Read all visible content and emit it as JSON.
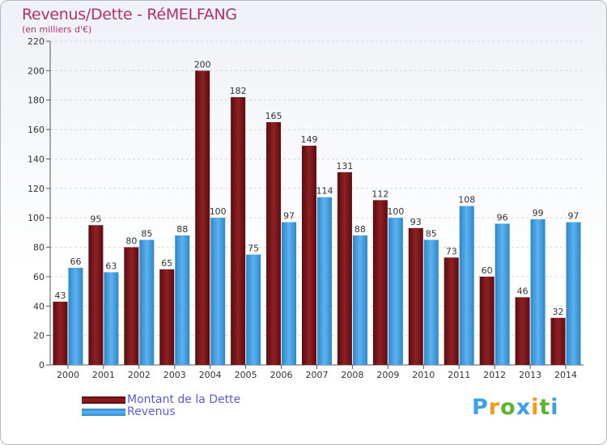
{
  "header": {
    "title": "Revenus/Dette - RéMELFANG",
    "subtitle": "(en milliers d'€)"
  },
  "colors": {
    "dette": "#7a1418",
    "revenus": "#4aa3e2",
    "title": "#b0306a"
  },
  "logo": {
    "text": "Proxiti",
    "letters": [
      "P",
      "r",
      "o",
      "x",
      "i",
      "t",
      "i"
    ],
    "colors": [
      "#3aa0e8",
      "#f29a1b",
      "#5cb531",
      "#3aa0e8",
      "#f29a1b",
      "#5cb531",
      "#3aa0e8"
    ]
  },
  "chart_data": {
    "type": "bar",
    "title": "Revenus/Dette - RéMELFANG",
    "ylabel": "(en milliers d'€)",
    "xlabel": "",
    "categories": [
      "2000",
      "2001",
      "2002",
      "2003",
      "2004",
      "2005",
      "2006",
      "2007",
      "2008",
      "2009",
      "2010",
      "2011",
      "2012",
      "2013",
      "2014"
    ],
    "series": [
      {
        "name": "Montant de la Dette",
        "values": [
          43,
          95,
          80,
          65,
          200,
          182,
          165,
          149,
          131,
          112,
          93,
          73,
          60,
          46,
          32
        ]
      },
      {
        "name": "Revenus",
        "values": [
          66,
          63,
          85,
          88,
          100,
          75,
          97,
          114,
          88,
          100,
          85,
          108,
          96,
          99,
          97
        ]
      }
    ],
    "ylim": [
      0,
      220
    ],
    "yticks": [
      0,
      20,
      40,
      60,
      80,
      100,
      120,
      140,
      160,
      180,
      200,
      220
    ],
    "grid": true,
    "legend": "bottom-left"
  }
}
